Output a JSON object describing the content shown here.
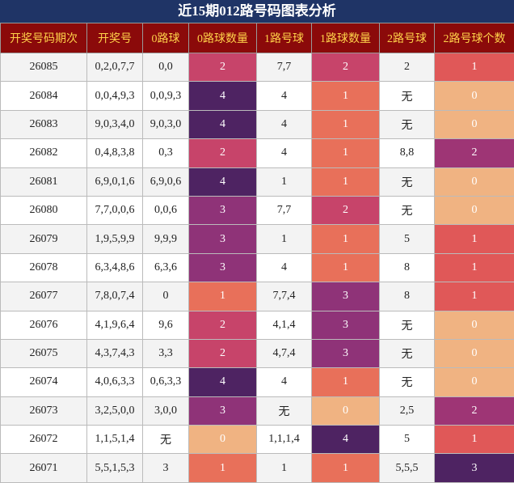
{
  "header": {
    "title": "近15期012路号码图表分析"
  },
  "table": {
    "columns": [
      "开奖号码期次",
      "开奖号",
      "0路球",
      "0路球数量",
      "1路号球",
      "1路球数量",
      "2路号球",
      "2路号球个数"
    ],
    "rows": [
      [
        "26085",
        "0,2,0,7,7",
        "0,0",
        "2",
        "7,7",
        "2",
        "2",
        "1"
      ],
      [
        "26084",
        "0,0,4,9,3",
        "0,0,9,3",
        "4",
        "4",
        "1",
        "无",
        "0"
      ],
      [
        "26083",
        "9,0,3,4,0",
        "9,0,3,0",
        "4",
        "4",
        "1",
        "无",
        "0"
      ],
      [
        "26082",
        "0,4,8,3,8",
        "0,3",
        "2",
        "4",
        "1",
        "8,8",
        "2"
      ],
      [
        "26081",
        "6,9,0,1,6",
        "6,9,0,6",
        "4",
        "1",
        "1",
        "无",
        "0"
      ],
      [
        "26080",
        "7,7,0,0,6",
        "0,0,6",
        "3",
        "7,7",
        "2",
        "无",
        "0"
      ],
      [
        "26079",
        "1,9,5,9,9",
        "9,9,9",
        "3",
        "1",
        "1",
        "5",
        "1"
      ],
      [
        "26078",
        "6,3,4,8,6",
        "6,3,6",
        "3",
        "4",
        "1",
        "8",
        "1"
      ],
      [
        "26077",
        "7,8,0,7,4",
        "0",
        "1",
        "7,7,4",
        "3",
        "8",
        "1"
      ],
      [
        "26076",
        "4,1,9,6,4",
        "9,6",
        "2",
        "4,1,4",
        "3",
        "无",
        "0"
      ],
      [
        "26075",
        "4,3,7,4,3",
        "3,3",
        "2",
        "4,7,4",
        "3",
        "无",
        "0"
      ],
      [
        "26074",
        "4,0,6,3,3",
        "0,6,3,3",
        "4",
        "4",
        "1",
        "无",
        "0"
      ],
      [
        "26073",
        "3,2,5,0,0",
        "3,0,0",
        "3",
        "无",
        "0",
        "2,5",
        "2"
      ],
      [
        "26072",
        "1,1,5,1,4",
        "无",
        "0",
        "1,1,1,4",
        "4",
        "5",
        "1"
      ],
      [
        "26071",
        "5,5,1,5,3",
        "3",
        "1",
        "1",
        "1",
        "5,5,5",
        "3"
      ]
    ],
    "cell_colors": {
      "3": {
        "0": "#f0b382",
        "1": "#e8705a",
        "2": "#c7446a",
        "3": "#8f3378",
        "4": "#4e2362"
      },
      "5": {
        "0": "#f0b382",
        "1": "#e8705a",
        "2": "#c7446a",
        "3": "#8f3378",
        "4": "#4e2362"
      },
      "7": {
        "0": "#f0b382",
        "1": "#e05858",
        "2": "#9e3575",
        "3": "#4e2362"
      }
    }
  }
}
